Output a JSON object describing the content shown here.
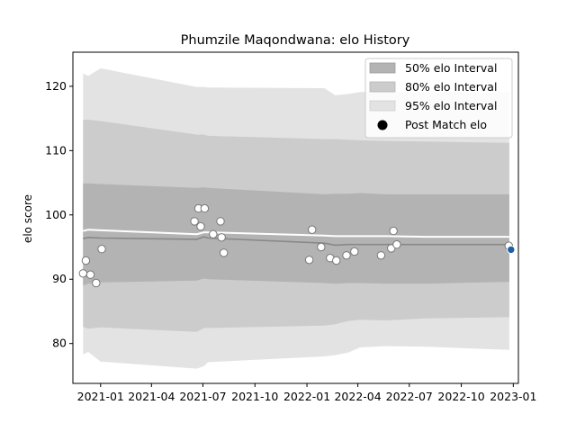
{
  "chart_data": {
    "type": "line",
    "title": "Phumzile Maqondwana: elo History",
    "xlabel": "",
    "ylabel": "elo score",
    "xlim": [
      "2020-11-13",
      "2023-01-10"
    ],
    "ylim": [
      73.8,
      125.3
    ],
    "x_ticks": [
      "2021-01",
      "2021-04",
      "2021-07",
      "2021-10",
      "2022-01",
      "2022-04",
      "2022-07",
      "2022-10",
      "2023-01"
    ],
    "y_ticks": [
      80,
      90,
      100,
      110,
      120
    ],
    "grid": false,
    "legend": {
      "placement": "top-right",
      "entries": [
        "50% elo Interval",
        "80% elo Interval",
        "95% elo Interval",
        "Post Match elo"
      ]
    },
    "colors": {
      "band_50": "#b3b3b3",
      "band_80": "#cccccc",
      "band_95": "#e3e3e3",
      "median_line": "#888888",
      "mean_line": "#ffffff",
      "point_fill": "#ffffff",
      "point_edge": "#777777",
      "latest_point": "#1f5fa8"
    },
    "band_dates": [
      "2020-12-01",
      "2020-12-10",
      "2021-01-01",
      "2021-06-20",
      "2021-07-03",
      "2021-07-10",
      "2022-02-01",
      "2022-02-20",
      "2022-03-15",
      "2022-04-05",
      "2022-05-20",
      "2022-08-01",
      "2022-12-25"
    ],
    "median": [
      96.3,
      96.5,
      96.4,
      96.2,
      96.6,
      96.4,
      95.6,
      95.3,
      95.4,
      95.4,
      95.4,
      95.4,
      95.4
    ],
    "mean": [
      97.5,
      97.7,
      97.6,
      97.0,
      97.3,
      97.3,
      96.8,
      96.7,
      96.7,
      96.7,
      96.7,
      96.6,
      96.6
    ],
    "band_50": {
      "lower": [
        89.0,
        89.3,
        89.5,
        89.8,
        90.1,
        90.0,
        89.4,
        89.3,
        89.4,
        89.4,
        89.3,
        89.3,
        89.6
      ],
      "upper": [
        104.9,
        104.9,
        104.8,
        104.2,
        104.3,
        104.2,
        103.2,
        103.3,
        103.3,
        103.4,
        103.2,
        103.2,
        103.2
      ]
    },
    "band_80": {
      "lower": [
        82.6,
        82.3,
        82.5,
        81.8,
        82.4,
        82.4,
        82.8,
        83.0,
        83.5,
        83.7,
        83.6,
        83.9,
        84.1
      ],
      "upper": [
        114.8,
        114.8,
        114.6,
        112.5,
        112.5,
        112.3,
        111.8,
        111.8,
        111.7,
        111.6,
        111.5,
        111.4,
        111.2
      ]
    },
    "band_95": {
      "lower": [
        78.3,
        78.7,
        77.2,
        76.1,
        76.5,
        77.1,
        78.0,
        78.2,
        78.6,
        79.4,
        79.6,
        79.5,
        79.0
      ],
      "upper": [
        122.0,
        121.6,
        122.8,
        119.9,
        119.9,
        119.8,
        119.7,
        118.6,
        118.8,
        119.1,
        119.1,
        119.1,
        119.1
      ]
    },
    "points": [
      {
        "date": "2020-12-01",
        "elo": 90.9
      },
      {
        "date": "2020-12-06",
        "elo": 92.9
      },
      {
        "date": "2020-12-14",
        "elo": 90.7
      },
      {
        "date": "2020-12-24",
        "elo": 89.4
      },
      {
        "date": "2021-01-03",
        "elo": 94.7
      },
      {
        "date": "2021-06-16",
        "elo": 99.0
      },
      {
        "date": "2021-06-23",
        "elo": 101.0
      },
      {
        "date": "2021-06-27",
        "elo": 98.2
      },
      {
        "date": "2021-07-04",
        "elo": 101.0
      },
      {
        "date": "2021-07-19",
        "elo": 97.0
      },
      {
        "date": "2021-08-01",
        "elo": 99.0
      },
      {
        "date": "2021-08-03",
        "elo": 96.5
      },
      {
        "date": "2021-08-07",
        "elo": 94.1
      },
      {
        "date": "2022-01-05",
        "elo": 93.0
      },
      {
        "date": "2022-01-10",
        "elo": 97.7
      },
      {
        "date": "2022-01-26",
        "elo": 95.0
      },
      {
        "date": "2022-02-11",
        "elo": 93.3
      },
      {
        "date": "2022-02-22",
        "elo": 92.9
      },
      {
        "date": "2022-03-12",
        "elo": 93.7
      },
      {
        "date": "2022-03-26",
        "elo": 94.3
      },
      {
        "date": "2022-05-12",
        "elo": 93.7
      },
      {
        "date": "2022-05-30",
        "elo": 94.8
      },
      {
        "date": "2022-06-03",
        "elo": 97.5
      },
      {
        "date": "2022-06-09",
        "elo": 95.4
      },
      {
        "date": "2022-12-24",
        "elo": 95.2
      },
      {
        "date": "2022-12-28",
        "elo": 94.6,
        "latest": true
      }
    ]
  }
}
